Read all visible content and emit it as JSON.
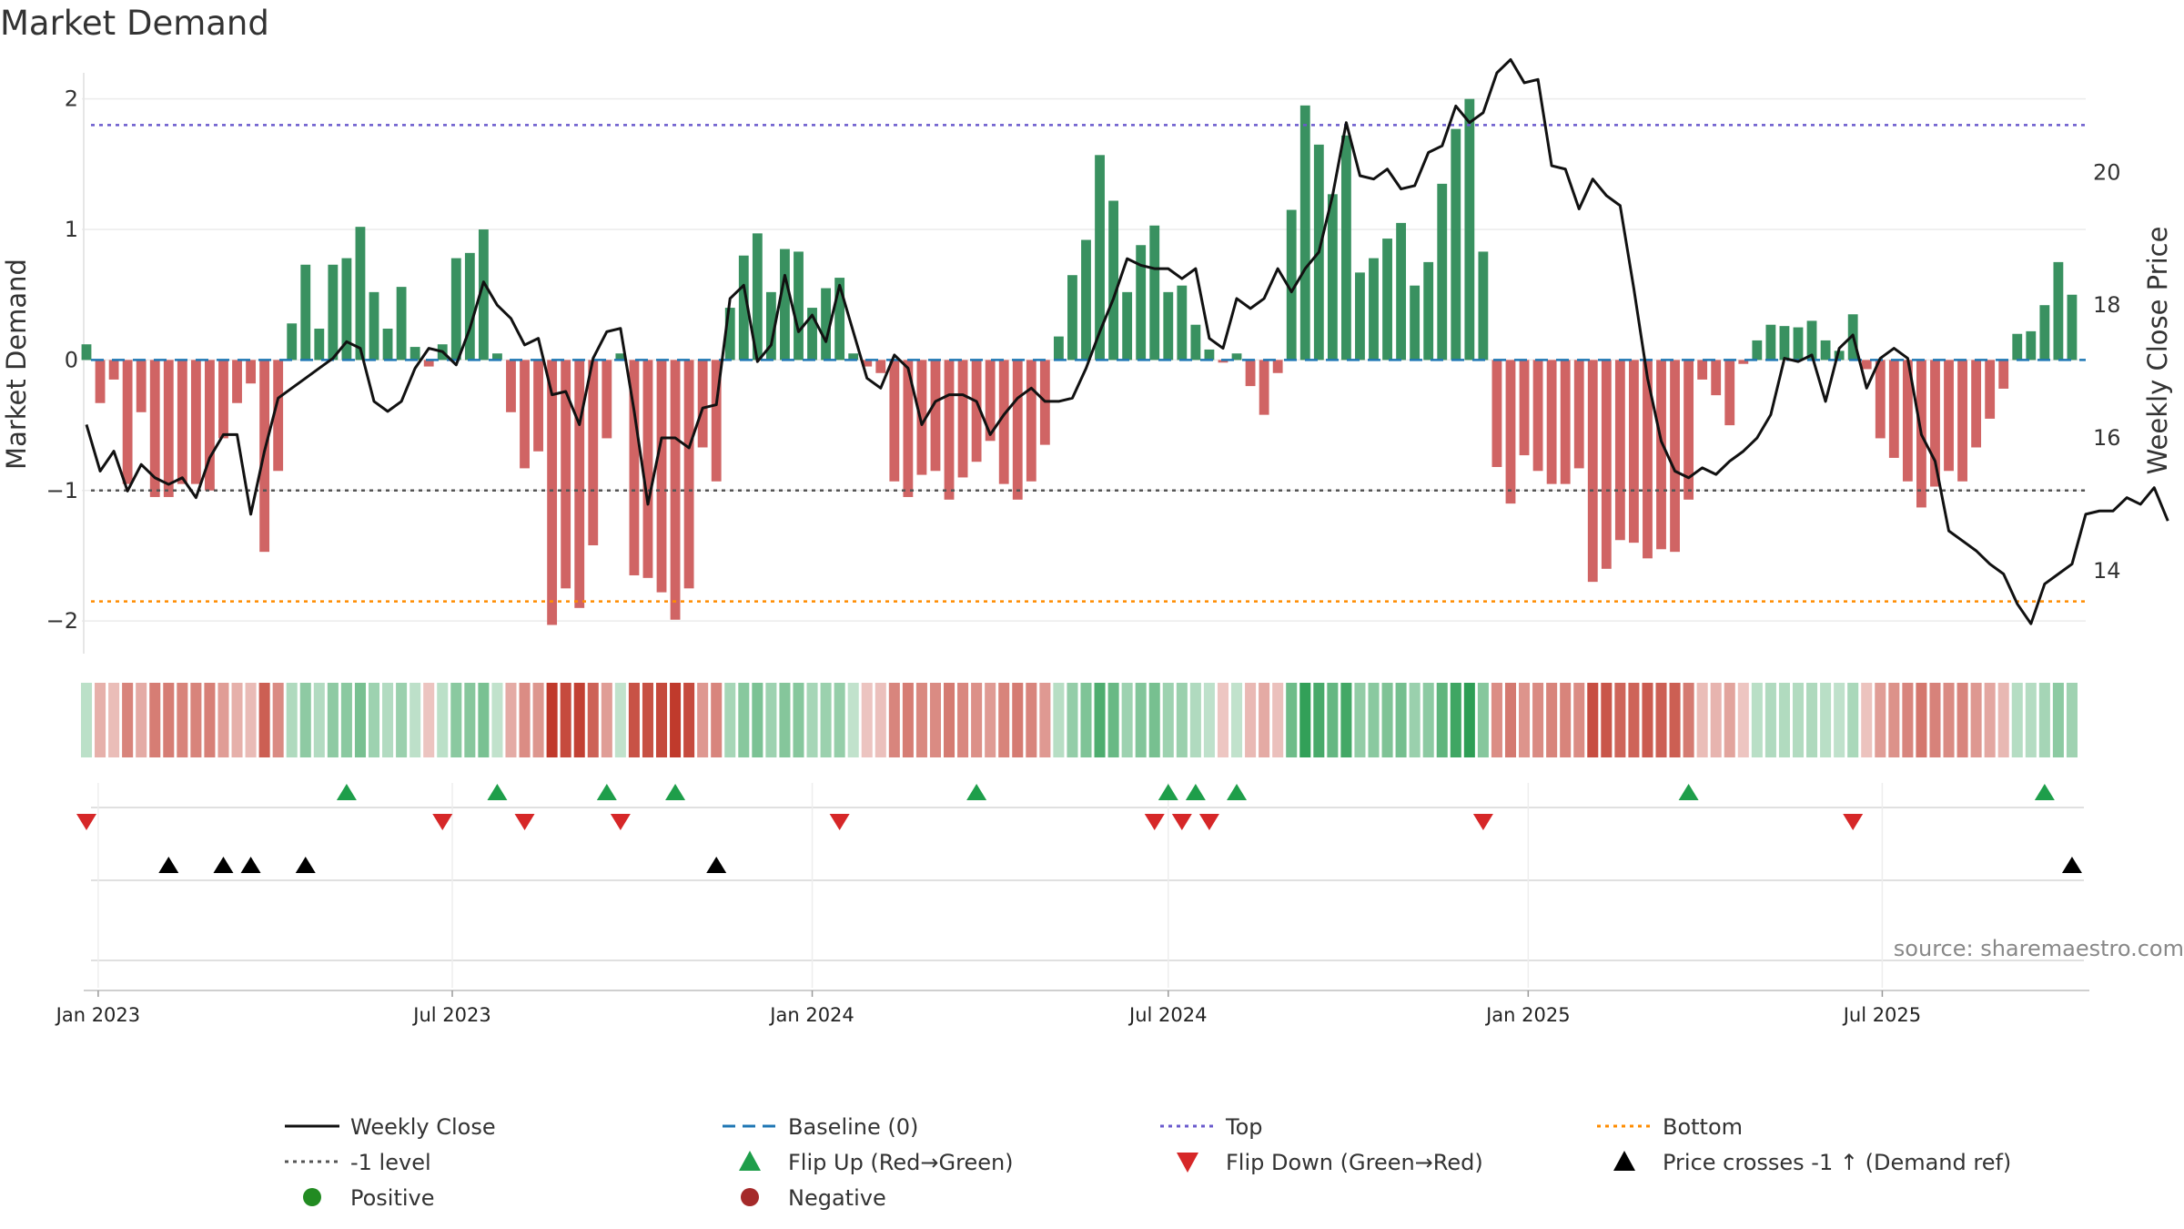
{
  "chart_data": {
    "type": "bar+line",
    "title": "Market Demand",
    "ylabel_left": "Market Demand",
    "ylabel_right": "Weekly Close Price",
    "ylim_left": [
      -2.25,
      2.2
    ],
    "ylim_right": [
      12.75,
      21.5
    ],
    "yticks_left": [
      2,
      1,
      0,
      -1,
      -2
    ],
    "yticks_left_labels": [
      "2",
      "1",
      "0",
      "−1",
      "−2"
    ],
    "yticks_right": [
      20,
      18,
      16,
      14
    ],
    "x_start": "2022-12-26",
    "x_end": "2025-10-13",
    "xticks": [
      {
        "date": "2023-01-01",
        "label": "Jan 2023"
      },
      {
        "date": "2023-07-01",
        "label": "Jul 2023"
      },
      {
        "date": "2024-01-01",
        "label": "Jan 2024"
      },
      {
        "date": "2024-07-01",
        "label": "Jul 2024"
      },
      {
        "date": "2025-01-01",
        "label": "Jan 2025"
      },
      {
        "date": "2025-07-01",
        "label": "Jul 2025"
      }
    ],
    "first_week": "2022-12-26",
    "demand": [
      0.12,
      -0.33,
      -0.15,
      -0.95,
      -0.4,
      -1.05,
      -1.05,
      -0.95,
      -0.95,
      -1.0,
      -0.6,
      -0.33,
      -0.18,
      -1.47,
      -0.85,
      0.28,
      0.73,
      0.24,
      0.73,
      0.78,
      1.02,
      0.52,
      0.24,
      0.56,
      0.1,
      -0.05,
      0.12,
      0.78,
      0.82,
      1.0,
      0.05,
      -0.4,
      -0.83,
      -0.7,
      -2.03,
      -1.75,
      -1.9,
      -1.42,
      -0.6,
      0.05,
      -1.65,
      -1.67,
      -1.78,
      -1.99,
      -1.75,
      -0.67,
      -0.93,
      0.4,
      0.8,
      0.97,
      0.52,
      0.85,
      0.83,
      0.4,
      0.55,
      0.63,
      0.05,
      -0.05,
      -0.1,
      -0.93,
      -1.05,
      -0.88,
      -0.85,
      -1.07,
      -0.9,
      -0.78,
      -0.62,
      -0.95,
      -1.07,
      -0.93,
      -0.65,
      0.18,
      0.65,
      0.92,
      1.57,
      1.22,
      0.52,
      0.88,
      1.03,
      0.52,
      0.57,
      0.27,
      0.08,
      -0.02,
      0.05,
      -0.2,
      -0.42,
      -0.1,
      1.15,
      1.95,
      1.65,
      1.27,
      1.72,
      0.67,
      0.78,
      0.93,
      1.05,
      0.57,
      0.75,
      1.35,
      1.77,
      2.0,
      0.83,
      -0.82,
      -1.1,
      -0.73,
      -0.85,
      -0.95,
      -0.95,
      -0.83,
      -1.7,
      -1.6,
      -1.38,
      -1.4,
      -1.52,
      -1.45,
      -1.47,
      -1.07,
      -0.15,
      -0.27,
      -0.5,
      -0.03,
      0.15,
      0.27,
      0.26,
      0.25,
      0.3,
      0.15,
      0.07,
      0.35,
      -0.07,
      -0.6,
      -0.75,
      -0.93,
      -1.13,
      -0.97,
      -0.85,
      -0.93,
      -0.67,
      -0.45,
      -0.22,
      0.2,
      0.22,
      0.42,
      0.75,
      0.5
    ],
    "weekly_close": [
      16.2,
      15.5,
      15.8,
      15.2,
      15.6,
      15.4,
      15.3,
      15.4,
      15.1,
      15.7,
      16.05,
      16.05,
      14.85,
      15.8,
      16.6,
      16.75,
      16.9,
      17.05,
      17.2,
      17.45,
      17.35,
      16.55,
      16.4,
      16.55,
      17.05,
      17.35,
      17.3,
      17.1,
      17.65,
      18.35,
      18.0,
      17.8,
      17.4,
      17.5,
      16.65,
      16.7,
      16.2,
      17.2,
      17.6,
      17.65,
      16.4,
      15.0,
      16.0,
      16.0,
      15.85,
      16.45,
      16.5,
      18.1,
      18.3,
      17.15,
      17.4,
      18.45,
      17.6,
      17.85,
      17.45,
      18.3,
      17.6,
      16.9,
      16.75,
      17.25,
      17.05,
      16.2,
      16.55,
      16.65,
      16.65,
      16.55,
      16.05,
      16.35,
      16.6,
      16.75,
      16.55,
      16.55,
      16.6,
      17.05,
      17.6,
      18.1,
      18.7,
      18.6,
      18.55,
      18.55,
      18.4,
      18.55,
      17.5,
      17.35,
      18.1,
      17.95,
      18.1,
      18.55,
      18.2,
      18.55,
      18.8,
      19.65,
      20.75,
      19.95,
      19.9,
      20.05,
      19.75,
      19.8,
      20.3,
      20.4,
      21.0,
      20.75,
      20.9,
      21.5,
      21.7,
      21.35,
      21.4,
      20.1,
      20.05,
      19.45,
      19.9,
      19.65,
      19.5,
      18.25,
      16.9,
      15.95,
      15.5,
      15.4,
      15.55,
      15.45,
      15.65,
      15.8,
      16.0,
      16.35,
      17.2,
      17.15,
      17.25,
      16.55,
      17.35,
      17.55,
      16.75,
      17.2,
      17.35,
      17.2,
      16.05,
      15.65,
      14.6,
      14.45,
      14.3,
      14.1,
      13.95,
      13.5,
      13.2,
      13.8,
      13.95,
      14.1,
      14.85,
      14.9,
      14.9,
      15.1,
      15.0,
      15.25,
      14.75
    ],
    "lines": {
      "baseline": 0,
      "top": 1.8,
      "minus_one": -1,
      "bottom": -1.85
    },
    "events": {
      "flip_up": [
        "2023-05-08",
        "2023-07-24",
        "2023-09-18",
        "2023-10-23",
        "2024-03-25",
        "2024-07-01",
        "2024-07-15",
        "2024-08-05",
        "2025-03-24",
        "2025-09-22"
      ],
      "flip_down": [
        "2022-12-26",
        "2023-06-26",
        "2023-08-07",
        "2023-09-25",
        "2024-01-15",
        "2024-06-24",
        "2024-07-08",
        "2024-07-22",
        "2024-12-09",
        "2025-06-16"
      ],
      "price_cross_up": [
        "2023-02-06",
        "2023-03-06",
        "2023-03-20",
        "2023-04-17",
        "2023-11-13",
        "2025-10-06"
      ]
    },
    "colors": {
      "positive": "#2e8b57",
      "negative": "#cd5c5c",
      "price": "#111111",
      "baseline": "#1f77b4",
      "top": "#6a5acd",
      "minus_one": "#555555",
      "bottom": "#ff8c00",
      "flip_up": "#1e9e4a",
      "flip_down": "#d62728",
      "cross": "#000000",
      "heat_pos": "#2e9e55",
      "heat_neg": "#c0392b"
    }
  },
  "source": "source: sharemaestro.com",
  "legend": [
    {
      "label": "Weekly Close",
      "icon": "solid-line"
    },
    {
      "label": "Baseline (0)",
      "icon": "dash-line"
    },
    {
      "label": "Top",
      "icon": "dot-line-top"
    },
    {
      "label": "Bottom",
      "icon": "dot-line-bottom"
    },
    {
      "label": "-1 level",
      "icon": "dot-line-grey"
    },
    {
      "label": "Flip Up (Red→Green)",
      "icon": "triangle-up-green"
    },
    {
      "label": "Flip Down (Green→Red)",
      "icon": "triangle-down-red"
    },
    {
      "label": "Price crosses -1 ↑ (Demand ref)",
      "icon": "triangle-up-black"
    },
    {
      "label": "Positive",
      "icon": "dot-green"
    },
    {
      "label": "Negative",
      "icon": "dot-red"
    }
  ]
}
